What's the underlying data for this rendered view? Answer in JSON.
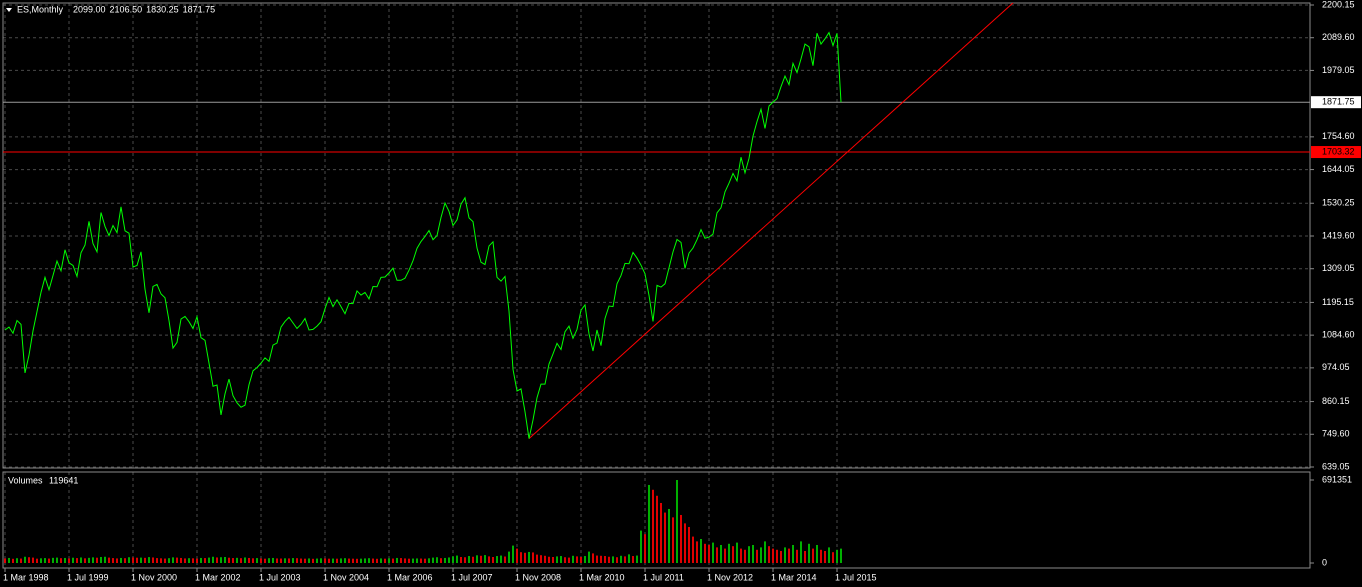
{
  "chart_data": {
    "type": "line",
    "grid": true,
    "ohlc": [
      2099,
      2106.5,
      1830.25,
      1871.75
    ],
    "ohlc_labels": [
      "2099.00",
      "2106.50",
      "1830.25",
      "1871.75"
    ],
    "x": [
      "1998-03-01",
      "1998-04-01",
      "1998-05-01",
      "1998-06-01",
      "1998-07-01",
      "1998-08-01",
      "1998-09-01",
      "1998-10-01",
      "1998-11-01",
      "1998-12-01",
      "1999-01-01",
      "1999-02-01",
      "1999-03-01",
      "1999-04-01",
      "1999-05-01",
      "1999-06-01",
      "1999-07-01",
      "1999-08-01",
      "1999-09-01",
      "1999-10-01",
      "1999-11-01",
      "1999-12-01",
      "2000-01-01",
      "2000-02-01",
      "2000-03-01",
      "2000-04-01",
      "2000-05-01",
      "2000-06-01",
      "2000-07-01",
      "2000-08-01",
      "2000-09-01",
      "2000-10-01",
      "2000-11-01",
      "2000-12-01",
      "2001-01-01",
      "2001-02-01",
      "2001-03-01",
      "2001-04-01",
      "2001-05-01",
      "2001-06-01",
      "2001-07-01",
      "2001-08-01",
      "2001-09-01",
      "2001-10-01",
      "2001-11-01",
      "2001-12-01",
      "2002-01-01",
      "2002-02-01",
      "2002-03-01",
      "2002-04-01",
      "2002-05-01",
      "2002-06-01",
      "2002-07-01",
      "2002-08-01",
      "2002-09-01",
      "2002-10-01",
      "2002-11-01",
      "2002-12-01",
      "2003-01-01",
      "2003-02-01",
      "2003-03-01",
      "2003-04-01",
      "2003-05-01",
      "2003-06-01",
      "2003-07-01",
      "2003-08-01",
      "2003-09-01",
      "2003-10-01",
      "2003-11-01",
      "2003-12-01",
      "2004-01-01",
      "2004-02-01",
      "2004-03-01",
      "2004-04-01",
      "2004-05-01",
      "2004-06-01",
      "2004-07-01",
      "2004-08-01",
      "2004-09-01",
      "2004-10-01",
      "2004-11-01",
      "2004-12-01",
      "2005-01-01",
      "2005-02-01",
      "2005-03-01",
      "2005-04-01",
      "2005-05-01",
      "2005-06-01",
      "2005-07-01",
      "2005-08-01",
      "2005-09-01",
      "2005-10-01",
      "2005-11-01",
      "2005-12-01",
      "2006-01-01",
      "2006-02-01",
      "2006-03-01",
      "2006-04-01",
      "2006-05-01",
      "2006-06-01",
      "2006-07-01",
      "2006-08-01",
      "2006-09-01",
      "2006-10-01",
      "2006-11-01",
      "2006-12-01",
      "2007-01-01",
      "2007-02-01",
      "2007-03-01",
      "2007-04-01",
      "2007-05-01",
      "2007-06-01",
      "2007-07-01",
      "2007-08-01",
      "2007-09-01",
      "2007-10-01",
      "2007-11-01",
      "2007-12-01",
      "2008-01-01",
      "2008-02-01",
      "2008-03-01",
      "2008-04-01",
      "2008-05-01",
      "2008-06-01",
      "2008-07-01",
      "2008-08-01",
      "2008-09-01",
      "2008-10-01",
      "2008-11-01",
      "2008-12-01",
      "2009-01-01",
      "2009-02-01",
      "2009-03-01",
      "2009-04-01",
      "2009-05-01",
      "2009-06-01",
      "2009-07-01",
      "2009-08-01",
      "2009-09-01",
      "2009-10-01",
      "2009-11-01",
      "2009-12-01",
      "2010-01-01",
      "2010-02-01",
      "2010-03-01",
      "2010-04-01",
      "2010-05-01",
      "2010-06-01",
      "2010-07-01",
      "2010-08-01",
      "2010-09-01",
      "2010-10-01",
      "2010-11-01",
      "2010-12-01",
      "2011-01-01",
      "2011-02-01",
      "2011-03-01",
      "2011-04-01",
      "2011-05-01",
      "2011-06-01",
      "2011-07-01",
      "2011-08-01",
      "2011-09-01",
      "2011-10-01",
      "2011-11-01",
      "2011-12-01",
      "2012-01-01",
      "2012-02-01",
      "2012-03-01",
      "2012-04-01",
      "2012-05-01",
      "2012-06-01",
      "2012-07-01",
      "2012-08-01",
      "2012-09-01",
      "2012-10-01",
      "2012-11-01",
      "2012-12-01",
      "2013-01-01",
      "2013-02-01",
      "2013-03-01",
      "2013-04-01",
      "2013-05-01",
      "2013-06-01",
      "2013-07-01",
      "2013-08-01",
      "2013-09-01",
      "2013-10-01",
      "2013-11-01",
      "2013-12-01",
      "2014-01-01",
      "2014-02-01",
      "2014-03-01",
      "2014-04-01",
      "2014-05-01",
      "2014-06-01",
      "2014-07-01",
      "2014-08-01",
      "2014-09-01",
      "2014-10-01",
      "2014-11-01",
      "2014-12-01",
      "2015-01-01",
      "2015-02-01",
      "2015-03-01",
      "2015-04-01",
      "2015-05-01",
      "2015-06-01",
      "2015-07-01",
      "2015-08-01"
    ],
    "series": [
      {
        "name": "ES,Monthly",
        "color": "#00ff00",
        "values": [
          1102,
          1112,
          1091,
          1134,
          1121,
          957,
          1017,
          1099,
          1164,
          1229,
          1280,
          1238,
          1286,
          1335,
          1302,
          1373,
          1329,
          1320,
          1283,
          1363,
          1389,
          1469,
          1394,
          1366,
          1499,
          1452,
          1421,
          1455,
          1431,
          1518,
          1437,
          1429,
          1315,
          1320,
          1366,
          1240,
          1160,
          1249,
          1256,
          1224,
          1211,
          1134,
          1041,
          1060,
          1139,
          1148,
          1130,
          1107,
          1147,
          1076,
          1067,
          990,
          912,
          916,
          815,
          886,
          936,
          880,
          856,
          841,
          848,
          917,
          964,
          975,
          990,
          1008,
          996,
          1051,
          1058,
          1112,
          1131,
          1145,
          1126,
          1107,
          1121,
          1141,
          1102,
          1104,
          1115,
          1130,
          1174,
          1212,
          1181,
          1204,
          1181,
          1157,
          1192,
          1191,
          1234,
          1220,
          1229,
          1207,
          1249,
          1248,
          1280,
          1281,
          1295,
          1311,
          1270,
          1270,
          1277,
          1304,
          1336,
          1378,
          1401,
          1418,
          1438,
          1407,
          1421,
          1482,
          1531,
          1503,
          1455,
          1474,
          1527,
          1549,
          1481,
          1468,
          1379,
          1331,
          1323,
          1386,
          1400,
          1280,
          1267,
          1283,
          1166,
          969,
          896,
          903,
          826,
          735,
          798,
          873,
          919,
          919,
          987,
          1021,
          1057,
          1036,
          1096,
          1115,
          1074,
          1104,
          1169,
          1187,
          1089,
          1031,
          1102,
          1049,
          1141,
          1183,
          1181,
          1258,
          1286,
          1327,
          1326,
          1364,
          1345,
          1321,
          1292,
          1219,
          1131,
          1253,
          1247,
          1258,
          1312,
          1366,
          1408,
          1398,
          1310,
          1362,
          1379,
          1407,
          1441,
          1412,
          1416,
          1426,
          1498,
          1515,
          1569,
          1598,
          1631,
          1606,
          1686,
          1633,
          1682,
          1757,
          1806,
          1848,
          1783,
          1859,
          1872,
          1884,
          1924,
          1960,
          1931,
          2003,
          1972,
          2018,
          2068,
          2059,
          1995,
          2105,
          2068,
          2086,
          2107,
          2063,
          2104,
          1871.75
        ]
      }
    ],
    "ylim": [
      639.05,
      2200.15
    ],
    "yticks": [
      639.05,
      {
        "value": 749.6,
        "label": "749.60"
      },
      860.15,
      974.05,
      {
        "value": 1084.6,
        "label": "1084.60"
      },
      1195.15,
      1309.05,
      {
        "value": 1419.6,
        "label": "1419.60"
      },
      1530.25,
      1644.05,
      {
        "value": 1754.6,
        "label": "1754.60"
      },
      1979.05,
      {
        "value": 2089.6,
        "label": "2089.60"
      },
      2200.15
    ],
    "xticks": [
      {
        "value": "1998-03-01",
        "label": "1 Mar 1998"
      },
      {
        "value": "1999-07-01",
        "label": "1 Jul 1999"
      },
      {
        "value": "2000-11-01",
        "label": "1 Nov 2000"
      },
      {
        "value": "2002-03-01",
        "label": "1 Mar 2002"
      },
      {
        "value": "2003-07-01",
        "label": "1 Jul 2003"
      },
      {
        "value": "2004-11-01",
        "label": "1 Nov 2004"
      },
      {
        "value": "2006-03-01",
        "label": "1 Mar 2006"
      },
      {
        "value": "2007-07-01",
        "label": "1 Jul 2007"
      },
      {
        "value": "2008-11-01",
        "label": "1 Nov 2008"
      },
      {
        "value": "2010-03-01",
        "label": "1 Mar 2010"
      },
      {
        "value": "2011-07-01",
        "label": "1 Jul 2011"
      },
      {
        "value": "2012-11-01",
        "label": "1 Nov 2012"
      },
      {
        "value": "2014-03-01",
        "label": "1 Mar 2014"
      },
      {
        "value": "2015-07-01",
        "label": "1 Jul 2015"
      }
    ],
    "hline": {
      "value": 1703.32,
      "color": "#ff0000"
    },
    "trendline": {
      "x": [
        "2009-02-01",
        "2015-08-01"
      ],
      "y": [
        735,
        1684
      ],
      "color": "#ff0000",
      "extend": "right"
    },
    "volume": {
      "name": "Volumes",
      "up_color": "#00b000",
      "down_color": "#e00000",
      "ylim": [
        0,
        691351
      ],
      "yticks": [
        0,
        691351
      ],
      "values": [
        38000,
        42000,
        35000,
        40000,
        37000,
        52000,
        48000,
        45000,
        36000,
        39000,
        41000,
        37000,
        43000,
        45000,
        40000,
        42000,
        38000,
        44000,
        41000,
        46000,
        39000,
        43000,
        47000,
        44000,
        50000,
        52000,
        45000,
        41000,
        38000,
        42000,
        40000,
        48000,
        46000,
        44000,
        45000,
        43000,
        49000,
        46000,
        41000,
        39000,
        37000,
        40000,
        47000,
        45000,
        42000,
        38000,
        40000,
        39000,
        37000,
        42000,
        41000,
        45000,
        52000,
        46000,
        48000,
        50000,
        44000,
        41000,
        43000,
        40000,
        46000,
        42000,
        39000,
        41000,
        38000,
        36000,
        40000,
        42000,
        38000,
        37000,
        39000,
        38000,
        41000,
        40000,
        37000,
        36000,
        38000,
        35000,
        37000,
        39000,
        38000,
        36000,
        37000,
        36000,
        38000,
        40000,
        37000,
        36000,
        35000,
        36000,
        38000,
        40000,
        37000,
        35000,
        38000,
        36000,
        39000,
        37000,
        42000,
        41000,
        38000,
        36000,
        37000,
        38000,
        37000,
        36000,
        39000,
        45000,
        48000,
        40000,
        42000,
        46000,
        55000,
        62000,
        50000,
        48000,
        58000,
        52000,
        64000,
        60000,
        66000,
        55000,
        50000,
        58000,
        62000,
        54000,
        95000,
        145000,
        120000,
        90000,
        85000,
        92000,
        88000,
        70000,
        65000,
        60000,
        52000,
        50000,
        55000,
        58000,
        48000,
        45000,
        60000,
        55000,
        50000,
        58000,
        95000,
        80000,
        62000,
        60000,
        58000,
        52000,
        55000,
        48000,
        60000,
        55000,
        72000,
        58000,
        62000,
        270000,
        240000,
        650000,
        610000,
        560000,
        500000,
        420000,
        450000,
        380000,
        691351,
        400000,
        330000,
        300000,
        220000,
        180000,
        200000,
        160000,
        150000,
        170000,
        130000,
        150000,
        120000,
        160000,
        140000,
        170000,
        120000,
        110000,
        140000,
        150000,
        110000,
        130000,
        180000,
        140000,
        120000,
        110000,
        100000,
        130000,
        120000,
        150000,
        110000,
        180000,
        100000,
        160000,
        120000,
        150000,
        110000,
        100000,
        130000,
        90000,
        110000,
        119641
      ]
    }
  }
}
